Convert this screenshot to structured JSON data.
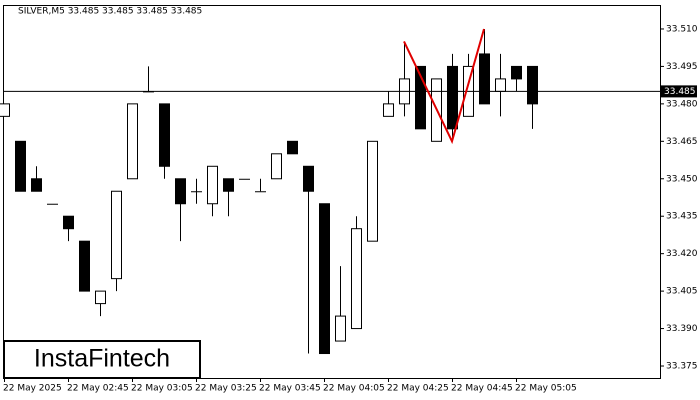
{
  "chart_data": {
    "type": "candlestick",
    "title": "SILVER,M5  33.485 33.485 33.485 33.485",
    "watermark": "InstaFintech",
    "categories": [
      "22 May 2025",
      null,
      null,
      null,
      "22 May 02:45",
      null,
      null,
      null,
      "22 May 03:05",
      null,
      null,
      null,
      "22 May 03:25",
      null,
      null,
      null,
      "22 May 03:45",
      null,
      null,
      null,
      "22 May 04:05",
      null,
      null,
      null,
      "22 May 04:25",
      null,
      null,
      null,
      "22 May 04:45",
      null,
      null,
      null,
      "22 May 05:05",
      null
    ],
    "open": [
      33.475,
      33.465,
      33.45,
      33.44,
      33.435,
      33.425,
      33.4,
      33.41,
      33.45,
      33.485,
      33.48,
      33.45,
      33.445,
      33.44,
      33.45,
      33.45,
      33.445,
      33.45,
      33.465,
      33.455,
      33.44,
      33.385,
      33.39,
      33.425,
      33.475,
      33.48,
      33.495,
      33.465,
      33.495,
      33.475,
      33.5,
      33.485,
      33.495,
      33.495
    ],
    "high": [
      33.48,
      33.465,
      33.455,
      33.44,
      33.435,
      33.425,
      33.405,
      33.445,
      33.48,
      33.495,
      33.48,
      33.45,
      33.45,
      33.455,
      33.45,
      33.45,
      33.45,
      33.46,
      33.465,
      33.455,
      33.44,
      33.415,
      33.435,
      33.465,
      33.485,
      33.505,
      33.495,
      33.49,
      33.5,
      33.5,
      33.51,
      33.5,
      33.495,
      33.495
    ],
    "low": [
      33.475,
      33.445,
      33.445,
      33.44,
      33.425,
      33.405,
      33.395,
      33.405,
      33.45,
      33.485,
      33.45,
      33.425,
      33.44,
      33.435,
      33.435,
      33.45,
      33.445,
      33.45,
      33.46,
      33.38,
      33.38,
      33.385,
      33.39,
      33.425,
      33.475,
      33.475,
      33.47,
      33.465,
      33.465,
      33.475,
      33.48,
      33.475,
      33.485,
      33.47
    ],
    "close": [
      33.48,
      33.445,
      33.445,
      33.44,
      33.43,
      33.405,
      33.405,
      33.445,
      33.48,
      33.485,
      33.455,
      33.44,
      33.445,
      33.455,
      33.445,
      33.45,
      33.445,
      33.46,
      33.46,
      33.445,
      33.38,
      33.395,
      33.43,
      33.465,
      33.48,
      33.49,
      33.47,
      33.49,
      33.47,
      33.495,
      33.48,
      33.49,
      33.49,
      33.48
    ],
    "up_color": "#ffffff",
    "down_color": "#000000",
    "ylim": [
      33.3702,
      33.5196
    ],
    "yticks": [
      {
        "value": 33.51,
        "label": "33.510"
      },
      33.495,
      {
        "value": 33.48,
        "label": "33.480"
      },
      33.465,
      {
        "value": 33.45,
        "label": "33.450"
      },
      33.435,
      {
        "value": 33.42,
        "label": "33.420"
      },
      33.405,
      {
        "value": 33.39,
        "label": "33.390"
      },
      33.375
    ],
    "current_price": 33.485,
    "pattern": {
      "color": "#e00000",
      "points": [
        [
          25,
          33.505
        ],
        [
          28,
          33.465
        ],
        [
          30,
          33.51
        ]
      ]
    }
  }
}
